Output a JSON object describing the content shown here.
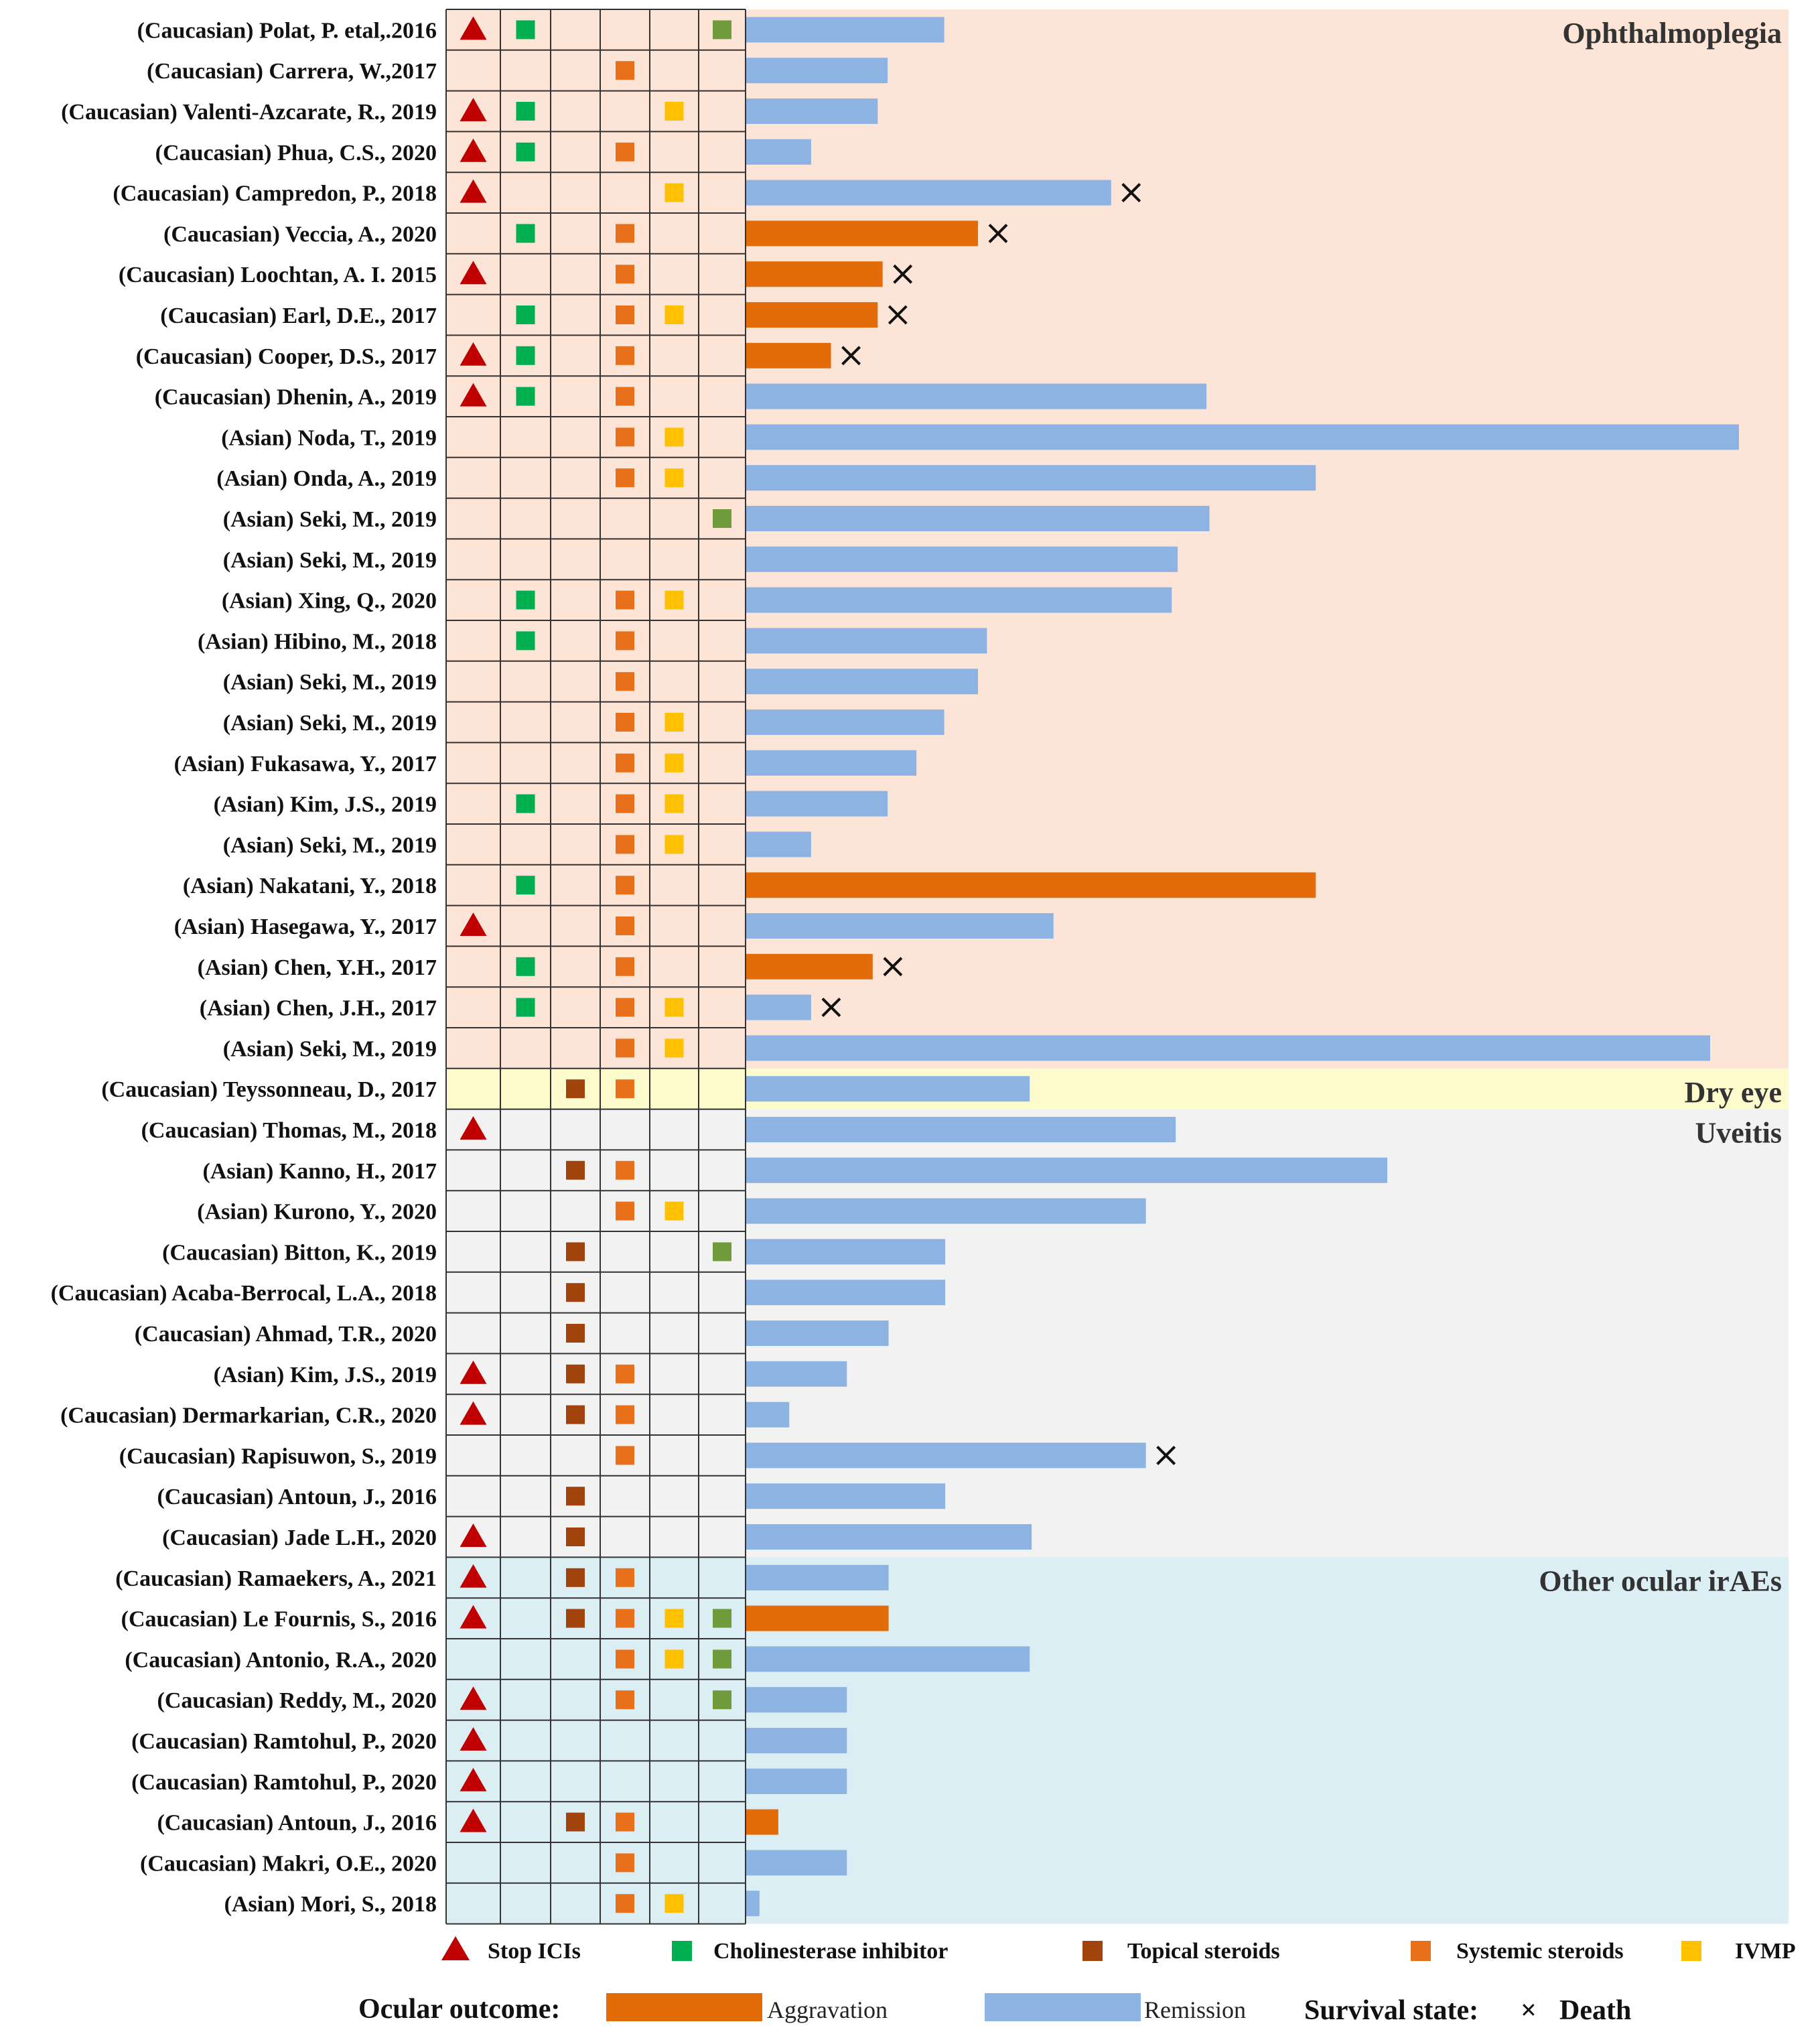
{
  "chart_data": {
    "type": "bar",
    "title": "",
    "xlabel": "",
    "ylabel": "",
    "xlim": [
      0,
      100
    ],
    "colors": {
      "stop_icis": "#c00000",
      "cholinesterase_inhibitor": "#00b050",
      "topical_steroids": "#a0430d",
      "systemic_steroids": "#e8701a",
      "ivmp": "#ffc000",
      "other_treatment": "#6f9b3a",
      "aggravation": "#e36c09",
      "remission": "#8db3e2",
      "bg_ophthalmoplegia": "#fce4d6",
      "bg_dry_eye": "#fdfbcc",
      "bg_uveitis": "#f2f2f2",
      "bg_other": "#dbeef4",
      "death_mark": "#111111",
      "grid": "#333333"
    },
    "groups": [
      {
        "name": "Ophthalmoplegia",
        "rows": [
          {
            "label": "(Caucasian) Polat, P. etal,.2016",
            "stop": true,
            "chol": true,
            "topical": false,
            "systemic": false,
            "ivmp": false,
            "other": true,
            "outcome": "remission",
            "value": 20,
            "death": false
          },
          {
            "label": "(Caucasian) Carrera, W.,2017",
            "stop": false,
            "chol": false,
            "topical": false,
            "systemic": true,
            "ivmp": false,
            "other": false,
            "outcome": "remission",
            "value": 14.3,
            "death": false
          },
          {
            "label": "(Caucasian) Valenti-Azcarate, R., 2019",
            "stop": true,
            "chol": true,
            "topical": false,
            "systemic": false,
            "ivmp": true,
            "other": false,
            "outcome": "remission",
            "value": 13.3,
            "death": false
          },
          {
            "label": "(Caucasian) Phua, C.S., 2020",
            "stop": true,
            "chol": true,
            "topical": false,
            "systemic": true,
            "ivmp": false,
            "other": false,
            "outcome": "remission",
            "value": 6.6,
            "death": false
          },
          {
            "label": "(Caucasian) Campredon, P., 2018",
            "stop": true,
            "chol": false,
            "topical": false,
            "systemic": false,
            "ivmp": true,
            "other": false,
            "outcome": "remission",
            "value": 36.8,
            "death": true
          },
          {
            "label": "(Caucasian) Veccia, A., 2020",
            "stop": false,
            "chol": true,
            "topical": false,
            "systemic": true,
            "ivmp": false,
            "other": false,
            "outcome": "aggravation",
            "value": 23.4,
            "death": true
          },
          {
            "label": "(Caucasian) Loochtan, A. I. 2015",
            "stop": true,
            "chol": false,
            "topical": false,
            "systemic": true,
            "ivmp": false,
            "other": false,
            "outcome": "aggravation",
            "value": 13.8,
            "death": true
          },
          {
            "label": "(Caucasian) Earl, D.E., 2017",
            "stop": false,
            "chol": true,
            "topical": false,
            "systemic": true,
            "ivmp": true,
            "other": false,
            "outcome": "aggravation",
            "value": 13.3,
            "death": true
          },
          {
            "label": "(Caucasian) Cooper, D.S., 2017",
            "stop": true,
            "chol": true,
            "topical": false,
            "systemic": true,
            "ivmp": false,
            "other": false,
            "outcome": "aggravation",
            "value": 8.6,
            "death": true
          },
          {
            "label": "(Caucasian) Dhenin, A., 2019",
            "stop": true,
            "chol": true,
            "topical": false,
            "systemic": true,
            "ivmp": false,
            "other": false,
            "outcome": "remission",
            "value": 46.4,
            "death": false
          },
          {
            "label": "(Asian) Noda, T., 2019",
            "stop": false,
            "chol": false,
            "topical": false,
            "systemic": true,
            "ivmp": true,
            "other": false,
            "outcome": "remission",
            "value": 100,
            "death": false
          },
          {
            "label": "(Asian) Onda, A., 2019",
            "stop": false,
            "chol": false,
            "topical": false,
            "systemic": true,
            "ivmp": true,
            "other": false,
            "outcome": "remission",
            "value": 57.4,
            "death": false
          },
          {
            "label": "(Asian) Seki, M., 2019",
            "stop": false,
            "chol": false,
            "topical": false,
            "systemic": false,
            "ivmp": false,
            "other": true,
            "outcome": "remission",
            "value": 46.7,
            "death": false
          },
          {
            "label": "(Asian) Seki, M., 2019",
            "stop": false,
            "chol": false,
            "topical": false,
            "systemic": false,
            "ivmp": false,
            "other": false,
            "outcome": "remission",
            "value": 43.5,
            "death": false
          },
          {
            "label": "(Asian) Xing, Q., 2020",
            "stop": false,
            "chol": true,
            "topical": false,
            "systemic": true,
            "ivmp": true,
            "other": false,
            "outcome": "remission",
            "value": 42.9,
            "death": false
          },
          {
            "label": "(Asian) Hibino, M., 2018",
            "stop": false,
            "chol": true,
            "topical": false,
            "systemic": true,
            "ivmp": false,
            "other": false,
            "outcome": "remission",
            "value": 24.3,
            "death": false
          },
          {
            "label": "(Asian) Seki, M., 2019",
            "stop": false,
            "chol": false,
            "topical": false,
            "systemic": true,
            "ivmp": false,
            "other": false,
            "outcome": "remission",
            "value": 23.4,
            "death": false
          },
          {
            "label": "(Asian) Seki, M., 2019",
            "stop": false,
            "chol": false,
            "topical": false,
            "systemic": true,
            "ivmp": true,
            "other": false,
            "outcome": "remission",
            "value": 20,
            "death": false
          },
          {
            "label": "(Asian) Fukasawa, Y., 2017",
            "stop": false,
            "chol": false,
            "topical": false,
            "systemic": true,
            "ivmp": true,
            "other": false,
            "outcome": "remission",
            "value": 17.2,
            "death": false
          },
          {
            "label": "(Asian) Kim, J.S., 2019",
            "stop": false,
            "chol": true,
            "topical": false,
            "systemic": true,
            "ivmp": true,
            "other": false,
            "outcome": "remission",
            "value": 14.3,
            "death": false
          },
          {
            "label": "(Asian) Seki, M., 2019",
            "stop": false,
            "chol": false,
            "topical": false,
            "systemic": true,
            "ivmp": true,
            "other": false,
            "outcome": "remission",
            "value": 6.6,
            "death": false
          },
          {
            "label": "(Asian) Nakatani, Y., 2018",
            "stop": false,
            "chol": true,
            "topical": false,
            "systemic": true,
            "ivmp": false,
            "other": false,
            "outcome": "aggravation",
            "value": 57.4,
            "death": false
          },
          {
            "label": "(Asian) Hasegawa, Y., 2017",
            "stop": true,
            "chol": false,
            "topical": false,
            "systemic": true,
            "ivmp": false,
            "other": false,
            "outcome": "remission",
            "value": 31,
            "death": false
          },
          {
            "label": "(Asian) Chen, Y.H., 2017",
            "stop": false,
            "chol": true,
            "topical": false,
            "systemic": true,
            "ivmp": false,
            "other": false,
            "outcome": "aggravation",
            "value": 12.8,
            "death": true
          },
          {
            "label": "(Asian) Chen, J.H., 2017",
            "stop": false,
            "chol": true,
            "topical": false,
            "systemic": true,
            "ivmp": true,
            "other": false,
            "outcome": "remission",
            "value": 6.6,
            "death": true
          },
          {
            "label": "(Asian) Seki, M., 2019",
            "stop": false,
            "chol": false,
            "topical": false,
            "systemic": true,
            "ivmp": true,
            "other": false,
            "outcome": "remission",
            "value": 97.1,
            "death": false
          }
        ]
      },
      {
        "name": "Dry eye",
        "rows": [
          {
            "label": "(Caucasian) Teyssonneau, D., 2017",
            "stop": false,
            "chol": false,
            "topical": true,
            "systemic": true,
            "ivmp": false,
            "other": false,
            "outcome": "remission",
            "value": 28.6,
            "death": false
          }
        ]
      },
      {
        "name": "Uveitis",
        "rows": [
          {
            "label": "(Caucasian) Thomas, M., 2018",
            "stop": true,
            "chol": false,
            "topical": false,
            "systemic": false,
            "ivmp": false,
            "other": false,
            "outcome": "remission",
            "value": 43.3,
            "death": false
          },
          {
            "label": "(Asian) Kanno, H., 2017",
            "stop": false,
            "chol": false,
            "topical": true,
            "systemic": true,
            "ivmp": false,
            "other": false,
            "outcome": "remission",
            "value": 64.6,
            "death": false
          },
          {
            "label": "(Asian) Kurono, Y., 2020",
            "stop": false,
            "chol": false,
            "topical": false,
            "systemic": true,
            "ivmp": true,
            "other": false,
            "outcome": "remission",
            "value": 40.3,
            "death": false
          },
          {
            "label": "(Caucasian) Bitton, K., 2019",
            "stop": false,
            "chol": false,
            "topical": true,
            "systemic": false,
            "ivmp": false,
            "other": true,
            "outcome": "remission",
            "value": 20.1,
            "death": false
          },
          {
            "label": "(Caucasian) Acaba-Berrocal, L.A.,  2018",
            "stop": false,
            "chol": false,
            "topical": true,
            "systemic": false,
            "ivmp": false,
            "other": false,
            "outcome": "remission",
            "value": 20.1,
            "death": false
          },
          {
            "label": "(Caucasian) Ahmad, T.R., 2020",
            "stop": false,
            "chol": false,
            "topical": true,
            "systemic": false,
            "ivmp": false,
            "other": false,
            "outcome": "remission",
            "value": 14.4,
            "death": false
          },
          {
            "label": "(Asian) Kim, J.S., 2019",
            "stop": true,
            "chol": false,
            "topical": true,
            "systemic": true,
            "ivmp": false,
            "other": false,
            "outcome": "remission",
            "value": 10.2,
            "death": false
          },
          {
            "label": "(Caucasian) Dermarkarian, C.R., 2020",
            "stop": true,
            "chol": false,
            "topical": true,
            "systemic": true,
            "ivmp": false,
            "other": false,
            "outcome": "remission",
            "value": 4.4,
            "death": false
          },
          {
            "label": "(Caucasian) Rapisuwon, S., 2019",
            "stop": false,
            "chol": false,
            "topical": false,
            "systemic": true,
            "ivmp": false,
            "other": false,
            "outcome": "remission",
            "value": 40.3,
            "death": true
          },
          {
            "label": "(Caucasian) Antoun, J., 2016",
            "stop": false,
            "chol": false,
            "topical": true,
            "systemic": false,
            "ivmp": false,
            "other": false,
            "outcome": "remission",
            "value": 20.1,
            "death": false
          },
          {
            "label": "(Caucasian) Jade L.H., 2020",
            "stop": true,
            "chol": false,
            "topical": true,
            "systemic": false,
            "ivmp": false,
            "other": false,
            "outcome": "remission",
            "value": 28.8,
            "death": false
          }
        ]
      },
      {
        "name": "Other ocular irAEs",
        "rows": [
          {
            "label": "(Caucasian) Ramaekers, A., 2021",
            "stop": true,
            "chol": false,
            "topical": true,
            "systemic": true,
            "ivmp": false,
            "other": false,
            "outcome": "remission",
            "value": 14.4,
            "death": false
          },
          {
            "label": "(Caucasian) Le Fournis, S., 2016",
            "stop": true,
            "chol": false,
            "topical": true,
            "systemic": true,
            "ivmp": true,
            "other": true,
            "outcome": "aggravation",
            "value": 14.4,
            "death": false
          },
          {
            "label": "(Caucasian) Antonio, R.A., 2020",
            "stop": false,
            "chol": false,
            "topical": false,
            "systemic": true,
            "ivmp": true,
            "other": true,
            "outcome": "remission",
            "value": 28.6,
            "death": false
          },
          {
            "label": "(Caucasian) Reddy, M., 2020",
            "stop": true,
            "chol": false,
            "topical": false,
            "systemic": true,
            "ivmp": false,
            "other": true,
            "outcome": "remission",
            "value": 10.2,
            "death": false
          },
          {
            "label": "(Caucasian) Ramtohul, P., 2020",
            "stop": true,
            "chol": false,
            "topical": false,
            "systemic": false,
            "ivmp": false,
            "other": false,
            "outcome": "remission",
            "value": 10.2,
            "death": false
          },
          {
            "label": "(Caucasian) Ramtohul, P., 2020",
            "stop": true,
            "chol": false,
            "topical": false,
            "systemic": false,
            "ivmp": false,
            "other": false,
            "outcome": "remission",
            "value": 10.2,
            "death": false
          },
          {
            "label": "(Caucasian) Antoun, J., 2016",
            "stop": true,
            "chol": false,
            "topical": true,
            "systemic": true,
            "ivmp": false,
            "other": false,
            "outcome": "aggravation",
            "value": 3.3,
            "death": false
          },
          {
            "label": "(Caucasian) Makri, O.E., 2020",
            "stop": false,
            "chol": false,
            "topical": false,
            "systemic": true,
            "ivmp": false,
            "other": false,
            "outcome": "remission",
            "value": 10.2,
            "death": false
          },
          {
            "label": "(Asian) Mori, S., 2018",
            "stop": false,
            "chol": false,
            "topical": false,
            "systemic": true,
            "ivmp": true,
            "other": false,
            "outcome": "remission",
            "value": 1.4,
            "death": false
          }
        ]
      }
    ],
    "legend": {
      "stop_icis": "Stop ICIs",
      "cholinesterase_inhibitor": "Cholinesterase inhibitor",
      "topical_steroids": "Topical steroids",
      "systemic_steroids": "Systemic steroids",
      "ivmp": "IVMP",
      "ocular_outcome_label": "Ocular outcome:",
      "aggravation": "Aggravation",
      "remission": "Remission",
      "survival_state_label": "Survival state:",
      "death_mark": "×",
      "death": "Death"
    }
  }
}
